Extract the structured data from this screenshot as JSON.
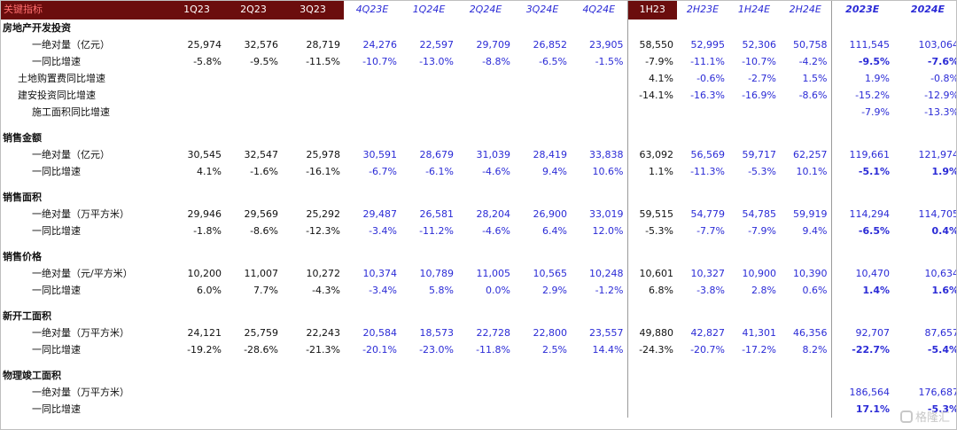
{
  "header": {
    "label": "关键指标",
    "columns": [
      "1Q23",
      "2Q23",
      "3Q23",
      "4Q23E",
      "1Q24E",
      "2Q24E",
      "3Q24E",
      "4Q24E",
      "1H23",
      "2H23E",
      "1H24E",
      "2H24E",
      "2023E",
      "2024E"
    ]
  },
  "sections": [
    {
      "title": "房地产开发投资",
      "rows": [
        {
          "label": "一绝对量（亿元）",
          "values": [
            "25,974",
            "32,576",
            "28,719",
            "24,276",
            "22,597",
            "29,709",
            "26,852",
            "23,905",
            "58,550",
            "52,995",
            "52,306",
            "50,758",
            "111,545",
            "103,064"
          ]
        },
        {
          "label": "一同比增速",
          "values": [
            "-5.8%",
            "-9.5%",
            "-11.5%",
            "-10.7%",
            "-13.0%",
            "-8.8%",
            "-6.5%",
            "-1.5%",
            "-7.9%",
            "-11.1%",
            "-10.7%",
            "-4.2%",
            "-9.5%",
            "-7.6%"
          ]
        },
        {
          "label": "土地购置费同比增速",
          "values": [
            "",
            "",
            "",
            "",
            "",
            "",
            "",
            "",
            "4.1%",
            "-0.6%",
            "-2.7%",
            "1.5%",
            "1.9%",
            "-0.8%"
          ]
        },
        {
          "label": "建安投资同比增速",
          "values": [
            "",
            "",
            "",
            "",
            "",
            "",
            "",
            "",
            "-14.1%",
            "-16.3%",
            "-16.9%",
            "-8.6%",
            "-15.2%",
            "-12.9%"
          ]
        },
        {
          "label": "施工面积同比增速",
          "values": [
            "",
            "",
            "",
            "",
            "",
            "",
            "",
            "",
            "",
            "",
            "",
            "",
            "-7.9%",
            "-13.3%"
          ]
        }
      ]
    },
    {
      "title": "销售金额",
      "rows": [
        {
          "label": "一绝对量（亿元）",
          "values": [
            "30,545",
            "32,547",
            "25,978",
            "30,591",
            "28,679",
            "31,039",
            "28,419",
            "33,838",
            "63,092",
            "56,569",
            "59,717",
            "62,257",
            "119,661",
            "121,974"
          ]
        },
        {
          "label": "一同比增速",
          "values": [
            "4.1%",
            "-1.6%",
            "-16.1%",
            "-6.7%",
            "-6.1%",
            "-4.6%",
            "9.4%",
            "10.6%",
            "1.1%",
            "-11.3%",
            "-5.3%",
            "10.1%",
            "-5.1%",
            "1.9%"
          ]
        }
      ]
    },
    {
      "title": "销售面积",
      "rows": [
        {
          "label": "一绝对量（万平方米）",
          "values": [
            "29,946",
            "29,569",
            "25,292",
            "29,487",
            "26,581",
            "28,204",
            "26,900",
            "33,019",
            "59,515",
            "54,779",
            "54,785",
            "59,919",
            "114,294",
            "114,705"
          ]
        },
        {
          "label": "一同比增速",
          "values": [
            "-1.8%",
            "-8.6%",
            "-12.3%",
            "-3.4%",
            "-11.2%",
            "-4.6%",
            "6.4%",
            "12.0%",
            "-5.3%",
            "-7.7%",
            "-7.9%",
            "9.4%",
            "-6.5%",
            "0.4%"
          ]
        }
      ]
    },
    {
      "title": "销售价格",
      "rows": [
        {
          "label": "一绝对量（元/平方米）",
          "values": [
            "10,200",
            "11,007",
            "10,272",
            "10,374",
            "10,789",
            "11,005",
            "10,565",
            "10,248",
            "10,601",
            "10,327",
            "10,900",
            "10,390",
            "10,470",
            "10,634"
          ]
        },
        {
          "label": "一同比增速",
          "values": [
            "6.0%",
            "7.7%",
            "-4.3%",
            "-3.4%",
            "5.8%",
            "0.0%",
            "2.9%",
            "-1.2%",
            "6.8%",
            "-3.8%",
            "2.8%",
            "0.6%",
            "1.4%",
            "1.6%"
          ]
        }
      ]
    },
    {
      "title": "新开工面积",
      "rows": [
        {
          "label": "一绝对量（万平方米）",
          "values": [
            "24,121",
            "25,759",
            "22,243",
            "20,584",
            "18,573",
            "22,728",
            "22,800",
            "23,557",
            "49,880",
            "42,827",
            "41,301",
            "46,356",
            "92,707",
            "87,657"
          ]
        },
        {
          "label": "一同比增速",
          "values": [
            "-19.2%",
            "-28.6%",
            "-21.3%",
            "-20.1%",
            "-23.0%",
            "-11.8%",
            "2.5%",
            "14.4%",
            "-24.3%",
            "-20.7%",
            "-17.2%",
            "8.2%",
            "-22.7%",
            "-5.4%"
          ]
        }
      ]
    },
    {
      "title": "物理竣工面积",
      "rows": [
        {
          "label": "一绝对量（万平方米）",
          "values": [
            "",
            "",
            "",
            "",
            "",
            "",
            "",
            "",
            "",
            "",
            "",
            "",
            "186,564",
            "176,687"
          ]
        },
        {
          "label": "一同比增速",
          "values": [
            "",
            "",
            "",
            "",
            "",
            "",
            "",
            "",
            "",
            "",
            "",
            "",
            "17.1%",
            "-5.3%"
          ]
        }
      ]
    }
  ],
  "watermark": "格隆汇",
  "colors": {
    "header_bg": "#6b0d0d",
    "estimate_text": "#2b2bd6",
    "header_label": "#ff6e6e"
  }
}
